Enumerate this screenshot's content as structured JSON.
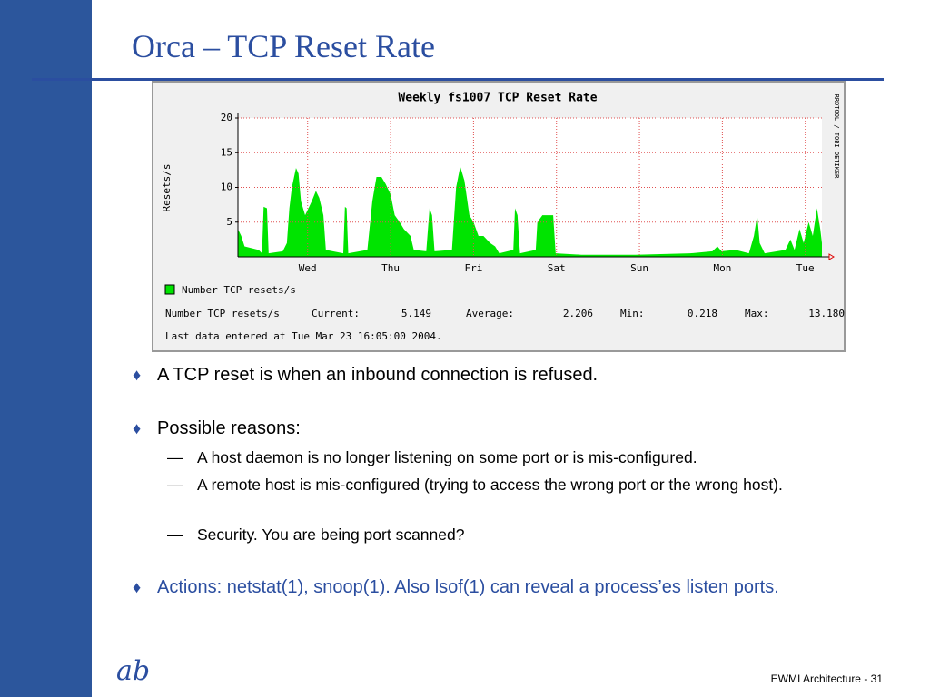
{
  "slide": {
    "title": "Orca – TCP Reset Rate",
    "bullets": [
      {
        "text": "A TCP reset is when an inbound connection is refused."
      },
      {
        "text": "Possible reasons:",
        "sub": [
          "A host daemon is no longer listening on some port or is mis-configured.",
          "A remote host is mis-configured (trying to access the wrong port or the wrong host).",
          "Security. You are being port scanned?"
        ]
      },
      {
        "text": "Actions: netstat(1), snoop(1). Also lsof(1) can reveal a process’es listen ports."
      }
    ],
    "sub_marker": "—",
    "logo": "ab",
    "footer": "EWMI Architecture - 31"
  },
  "chart_data": {
    "type": "area",
    "title": "Weekly fs1007 TCP Reset Rate",
    "y_label": "Resets/s",
    "side_text": "RRDTOOL / TOBI OETIKER",
    "x": [
      0.16,
      0.2,
      0.24,
      0.41,
      0.45,
      0.47,
      0.51,
      0.53,
      0.7,
      0.75,
      0.78,
      0.81,
      0.86,
      0.89,
      0.92,
      0.97,
      1.01,
      1.05,
      1.1,
      1.14,
      1.19,
      1.22,
      1.43,
      1.45,
      1.47,
      1.49,
      1.72,
      1.78,
      1.83,
      1.89,
      1.94,
      2.0,
      2.05,
      2.11,
      2.16,
      2.24,
      2.28,
      2.43,
      2.47,
      2.5,
      2.53,
      2.74,
      2.79,
      2.84,
      2.89,
      2.95,
      3.0,
      3.06,
      3.12,
      3.2,
      3.26,
      3.31,
      3.48,
      3.5,
      3.53,
      3.56,
      3.75,
      3.77,
      3.83,
      3.89,
      3.96,
      3.99,
      4.3,
      4.95,
      5.61,
      5.88,
      5.94,
      5.99,
      6.16,
      6.32,
      6.38,
      6.42,
      6.45,
      6.51,
      6.76,
      6.82,
      6.87,
      6.93,
      6.98,
      7.04,
      7.09,
      7.14,
      7.18,
      7.2
    ],
    "series": [
      {
        "name": "Number TCP resets/s",
        "color": "#00e400",
        "values": [
          4,
          3,
          1.5,
          1,
          0.5,
          7.2,
          7,
          0.5,
          0.8,
          2,
          7,
          10,
          12.8,
          12,
          8,
          6,
          7,
          8,
          9.5,
          8.5,
          6,
          1,
          0.5,
          7.2,
          7,
          0.5,
          1,
          8,
          11.5,
          11.5,
          10.5,
          9,
          6,
          5,
          4,
          3,
          1,
          0.8,
          7,
          6,
          0.8,
          1,
          10,
          13,
          11,
          6,
          5,
          3,
          3,
          2,
          1.5,
          0.5,
          1,
          7,
          6,
          0.5,
          1,
          5,
          6,
          6,
          6,
          0.5,
          0.3,
          0.3,
          0.5,
          0.8,
          1.5,
          0.8,
          1,
          0.5,
          3,
          6,
          2,
          0.5,
          1,
          2.5,
          1,
          4,
          2,
          5,
          3,
          7,
          4,
          2
        ]
      }
    ],
    "xlim": [
      0.16,
      7.2
    ],
    "xticks": [
      {
        "value": 1,
        "label": "Wed"
      },
      {
        "value": 2,
        "label": "Thu"
      },
      {
        "value": 3,
        "label": "Fri"
      },
      {
        "value": 4,
        "label": "Sat"
      },
      {
        "value": 5,
        "label": "Sun"
      },
      {
        "value": 6,
        "label": "Mon"
      },
      {
        "value": 7,
        "label": "Tue"
      }
    ],
    "ylim": [
      0,
      20
    ],
    "yticks": [
      5,
      10,
      15,
      20
    ],
    "grid": true,
    "stats": {
      "name": "Number TCP resets/s",
      "items": [
        {
          "label": "Current:",
          "value": "5.149"
        },
        {
          "label": "Average:",
          "value": "2.206"
        },
        {
          "label": "Min:",
          "value": "0.218"
        },
        {
          "label": "Max:",
          "value": "13.180"
        }
      ]
    },
    "last_update": "Last data entered at Tue Mar 23 16:05:00 2004."
  }
}
